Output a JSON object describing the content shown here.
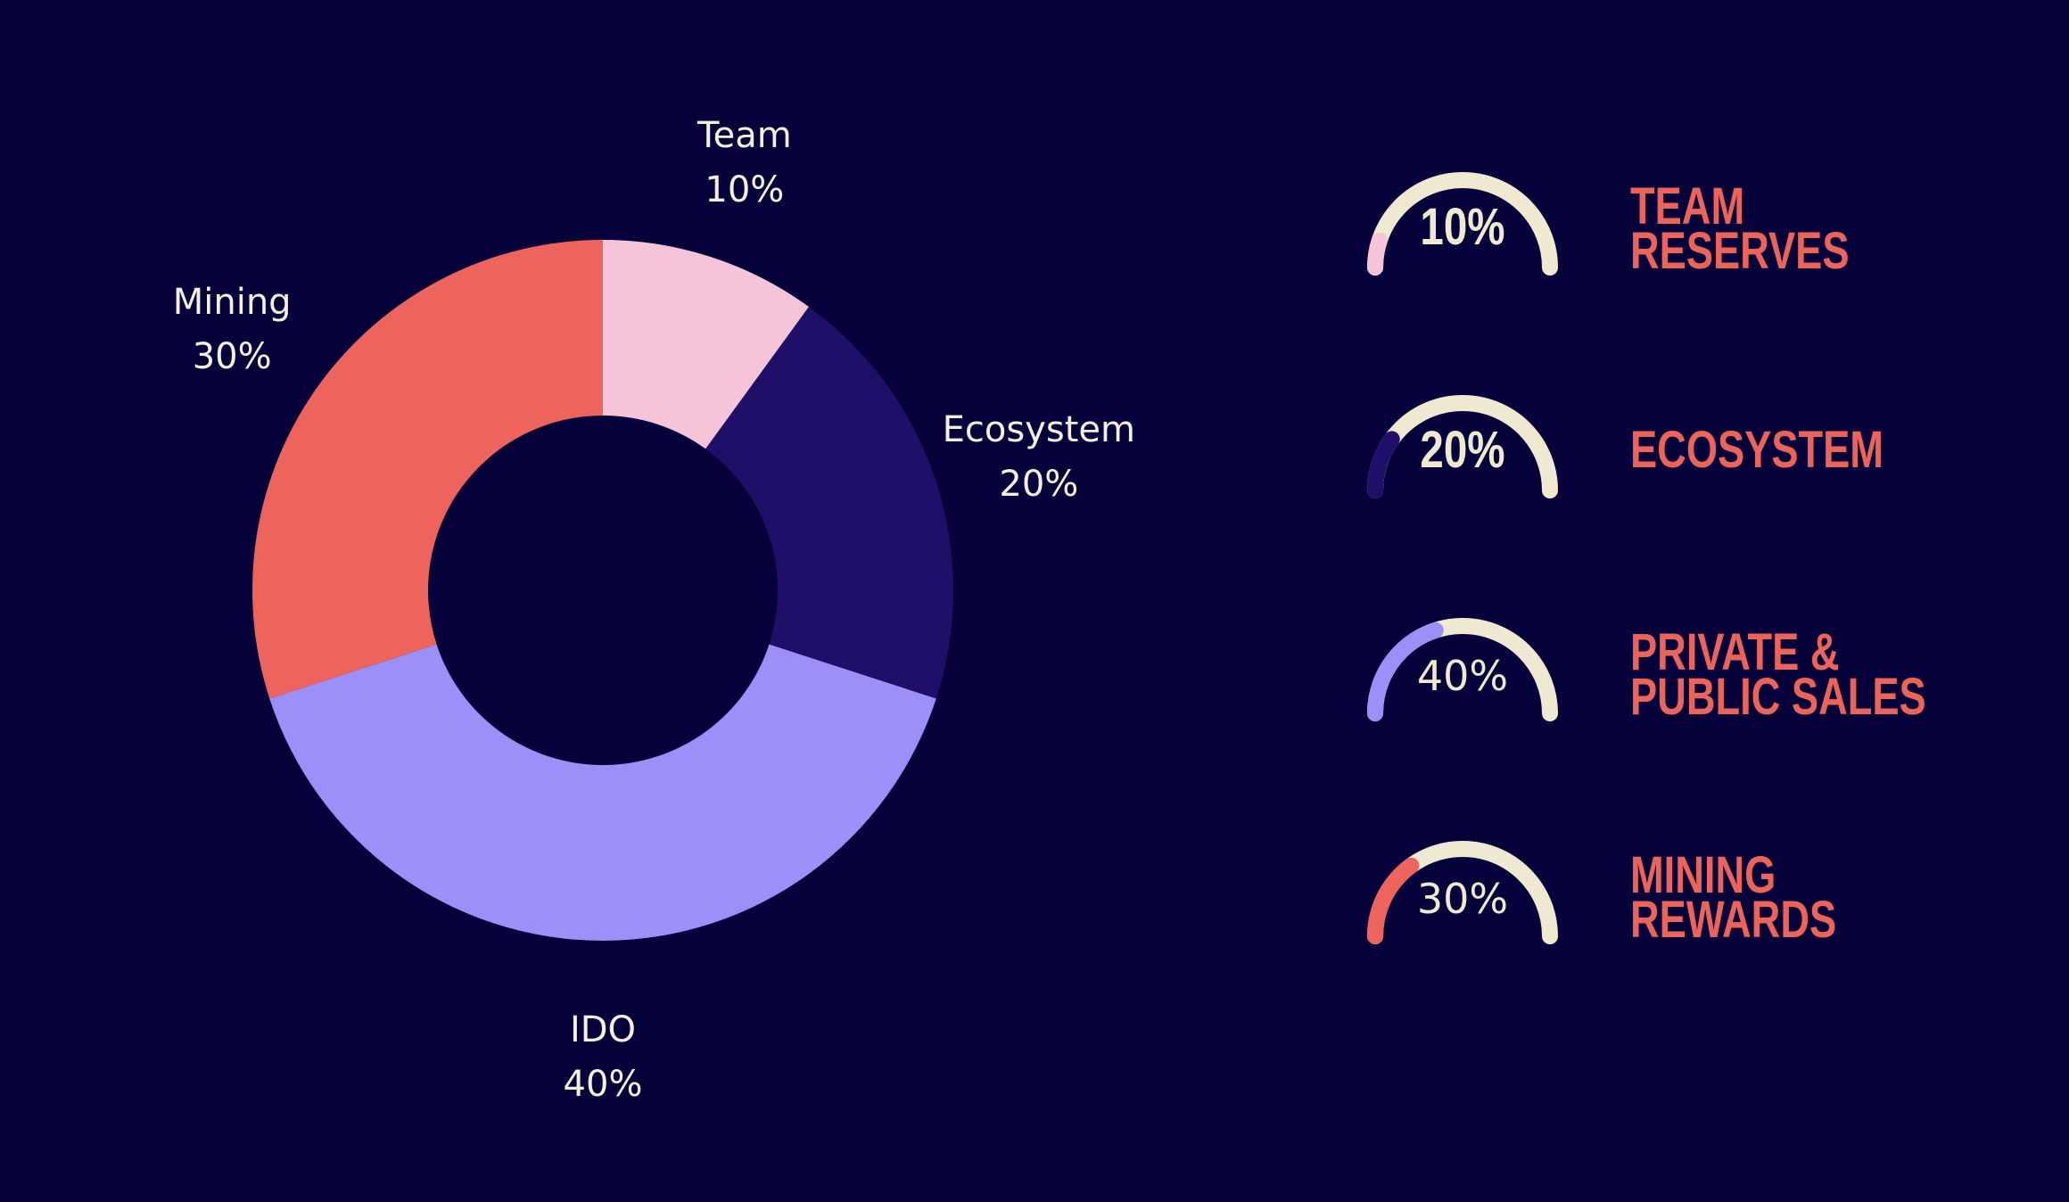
{
  "colors": {
    "background": "#05003a",
    "track": "#efe9d2",
    "title": "#ea6459",
    "label": "#f5efe2"
  },
  "chart_data": [
    {
      "type": "pie",
      "variant": "donut",
      "title": "",
      "start": "12 o'clock, clockwise",
      "slices": [
        {
          "name": "Team",
          "value": 10,
          "value_label": "10%",
          "color": "#f5c4d8"
        },
        {
          "name": "Ecosystem",
          "value": 20,
          "value_label": "20%",
          "color": "#1f0f69"
        },
        {
          "name": "IDO",
          "value": 40,
          "value_label": "40%",
          "color": "#9d8ff8"
        },
        {
          "name": "Mining",
          "value": 30,
          "value_label": "30%",
          "color": "#ed645d"
        }
      ]
    },
    {
      "type": "gauge",
      "range": [
        0,
        100
      ],
      "gauges": [
        {
          "title_lines": [
            "TEAM",
            "RESERVES"
          ],
          "value": 10,
          "value_label": "10%",
          "color": "#f5c4d8",
          "value_style": "bold"
        },
        {
          "title_lines": [
            "ECOSYSTEM"
          ],
          "value": 20,
          "value_label": "20%",
          "color": "#1f0f69",
          "value_style": "bold"
        },
        {
          "title_lines": [
            "PRIVATE &",
            "PUBLIC SALES"
          ],
          "value": 40,
          "value_label": "40%",
          "color": "#9d8ff8",
          "value_style": "light"
        },
        {
          "title_lines": [
            "MINING",
            "REWARDS"
          ],
          "value": 30,
          "value_label": "30%",
          "color": "#ed645d",
          "value_style": "light"
        }
      ]
    }
  ]
}
